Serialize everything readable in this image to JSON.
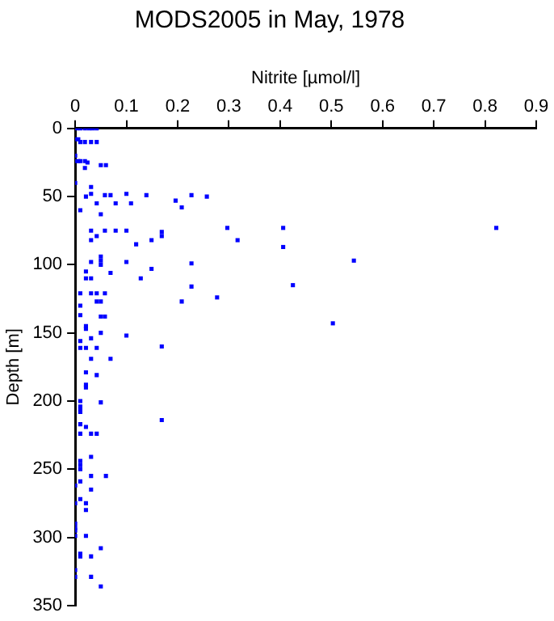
{
  "chart_data": {
    "type": "scatter",
    "title": "MODS2005 in May, 1978",
    "xlabel": "Nitrite [µmol/l]",
    "ylabel": "Depth [m]",
    "xlim": [
      0,
      0.9
    ],
    "xticks": [
      0,
      0.1,
      0.2,
      0.3,
      0.4,
      0.5,
      0.6,
      0.7,
      0.8,
      0.9
    ],
    "ylim": [
      350,
      0
    ],
    "yticks": [
      0,
      50,
      100,
      150,
      200,
      250,
      300,
      350
    ],
    "grid": false,
    "legend": false,
    "marker": "square",
    "series": [
      {
        "color": "#0000ff",
        "x": [
          0.003,
          0.01,
          0.019,
          0.027,
          0.034,
          0.042,
          0,
          0.006,
          0.01,
          0.019,
          0.031,
          0.042,
          0,
          0,
          0.006,
          0.01,
          0.019,
          0.024,
          0.05,
          0.06,
          0.019,
          0,
          0.031,
          0.031,
          0.1,
          0.058,
          0.069,
          0.139,
          0.227,
          0.021,
          0.257,
          0.196,
          0.042,
          0.079,
          0.109,
          0.208,
          0.01,
          0.05,
          0.297,
          0.406,
          0.822,
          0.031,
          0.058,
          0.079,
          0.1,
          0.169,
          0.042,
          0.169,
          0.031,
          0.149,
          0.317,
          0.119,
          0.406,
          0.544,
          0.05,
          0.05,
          0.05,
          0.031,
          0.1,
          0.227,
          0.149,
          0.021,
          0.069,
          0.021,
          0.031,
          0.128,
          0.425,
          0.227,
          0.01,
          0.031,
          0.042,
          0.058,
          0.277,
          0.208,
          0.042,
          0.05,
          0.01,
          0.01,
          0.05,
          0.058,
          0.503,
          0.021,
          0.021,
          0.05,
          0.1,
          0.031,
          0.01,
          0.169,
          0.01,
          0.021,
          0.042,
          0.031,
          0.069,
          0.021,
          0.042,
          0.021,
          0.021,
          0.01,
          0.05,
          0.01,
          0.01,
          0.01,
          0.169,
          0.01,
          0.021,
          0.01,
          0.031,
          0.042,
          0.031,
          0.01,
          0.01,
          0.01,
          0.031,
          0.06,
          0.01,
          0,
          0.031,
          0.01,
          0,
          0.021,
          0.021,
          0,
          0,
          0,
          0,
          0.021,
          0.05,
          0.01,
          0.01,
          0.031,
          0,
          0,
          0.031,
          0.05
        ],
        "values": [
          0,
          0,
          0,
          0,
          0,
          0,
          8,
          8,
          10,
          10,
          10,
          10,
          20,
          24,
          24,
          24,
          24,
          25,
          27,
          27,
          29,
          40,
          43,
          48,
          48,
          49,
          49,
          49,
          49,
          50,
          50,
          53,
          55,
          55,
          55,
          58,
          60,
          63,
          73,
          73,
          73,
          75,
          75,
          75,
          75,
          76,
          79,
          79,
          82,
          82,
          82,
          85,
          87,
          97,
          94,
          97,
          100,
          98,
          98,
          99,
          103,
          105,
          106,
          110,
          110,
          110,
          115,
          116,
          121,
          121,
          121,
          121,
          124,
          127,
          127,
          127,
          130,
          137,
          138,
          138,
          143,
          145,
          147,
          150,
          152,
          154,
          156,
          160,
          161,
          161,
          161,
          169,
          169,
          179,
          181,
          188,
          190,
          200,
          201,
          204,
          206,
          208,
          214,
          217,
          219,
          224,
          224,
          224,
          241,
          244,
          247,
          250,
          255,
          255,
          259,
          262,
          265,
          272,
          275,
          275,
          280,
          290,
          293,
          295,
          299,
          299,
          308,
          312,
          314,
          314,
          324,
          329,
          329,
          336
        ]
      }
    ]
  }
}
